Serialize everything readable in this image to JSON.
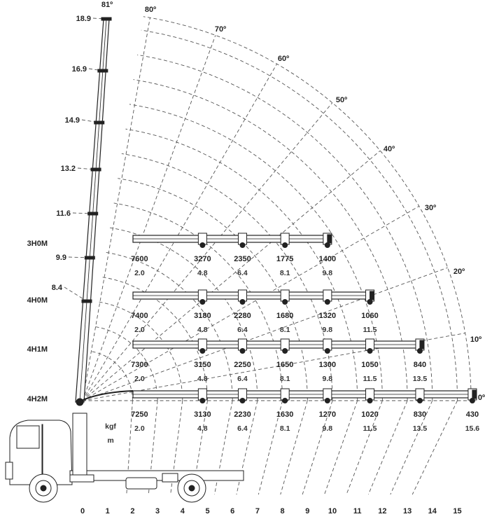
{
  "chart_data": {
    "type": "load_chart",
    "x_axis_ticks": [
      "0",
      "1",
      "2",
      "3",
      "4",
      "5",
      "6",
      "7",
      "8",
      "9",
      "10",
      "11",
      "12",
      "13",
      "14",
      "15"
    ],
    "height_labels": [
      "18.9",
      "16.9",
      "14.9",
      "13.2",
      "11.6",
      "9.9",
      "8.4"
    ],
    "angle_labels": [
      "81º",
      "80º",
      "70º",
      "60º",
      "50º",
      "40º",
      "30º",
      "20º",
      "10º",
      "0º"
    ],
    "configs": [
      {
        "name": "3H0M",
        "reach_max": 9.8,
        "loads": [
          "7600",
          "3270",
          "2350",
          "1775",
          "1400"
        ],
        "radii": [
          "2.0",
          "4.8",
          "6.4",
          "8.1",
          "9.8"
        ]
      },
      {
        "name": "4H0M",
        "reach_max": 11.5,
        "loads": [
          "7400",
          "3180",
          "2280",
          "1680",
          "1320",
          "1060"
        ],
        "radii": [
          "2.0",
          "4.8",
          "6.4",
          "8.1",
          "9.8",
          "11.5"
        ]
      },
      {
        "name": "4H1M",
        "reach_max": 13.5,
        "loads": [
          "7300",
          "3150",
          "2250",
          "1650",
          "1300",
          "1050",
          "840"
        ],
        "radii": [
          "2.0",
          "4.8",
          "6.4",
          "8.1",
          "9.8",
          "11.5",
          "13.5"
        ]
      },
      {
        "name": "4H2M",
        "reach_max": 15.6,
        "loads": [
          "7250",
          "3130",
          "2230",
          "1630",
          "1270",
          "1020",
          "830",
          "430"
        ],
        "radii": [
          "2.0",
          "4.8",
          "6.4",
          "8.1",
          "9.8",
          "11.5",
          "13.5",
          "15.6"
        ]
      }
    ],
    "unit_load": "kgf",
    "unit_radius": "m"
  }
}
